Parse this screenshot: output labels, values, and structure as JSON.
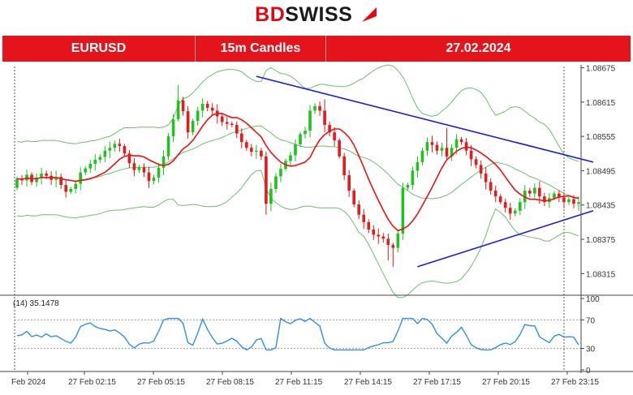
{
  "header": {
    "logo_left": "BD",
    "logo_right": "SWISS",
    "symbol": "EURUSD",
    "timeframe": "15m Candles",
    "date": "27.02.2024"
  },
  "colors": {
    "bull": "#1fc21f",
    "bear": "#e31b1b",
    "ma": "#ee1111",
    "bands": "#6cbf6c",
    "trendline": "#1a1adf",
    "rsi": "#2f8fef",
    "banner": "#e3141b"
  },
  "chart_data": [
    {
      "type": "candlestick",
      "title": "",
      "ylim": [
        1.0828,
        1.0868
      ],
      "y_ticks": [
        "1.08675",
        "1.08615",
        "1.08555",
        "1.08495",
        "1.08435",
        "1.08375",
        "1.08315"
      ],
      "x_ticks": [
        "Feb 2024",
        "27 Feb 02:15",
        "27 Feb 05:15",
        "27 Feb 08:15",
        "27 Feb 11:15",
        "27 Feb 14:15",
        "27 Feb 17:15",
        "27 Feb 20:15",
        "27 Feb 23:15"
      ],
      "candles": [],
      "moving_average": [],
      "bands_upper": [],
      "bands_middle": [],
      "bands_lower": [],
      "trendlines": [
        {
          "x": [
            49,
            118
          ],
          "y": [
            1.0866,
            1.0851
          ]
        },
        {
          "x": [
            82,
            118
          ],
          "y": [
            1.08327,
            1.08425
          ]
        }
      ]
    },
    {
      "type": "line",
      "label": "(14) 35.1478",
      "ylim": [
        0,
        100
      ],
      "levels": [
        "100",
        "70",
        "30",
        "0"
      ],
      "values": []
    }
  ]
}
